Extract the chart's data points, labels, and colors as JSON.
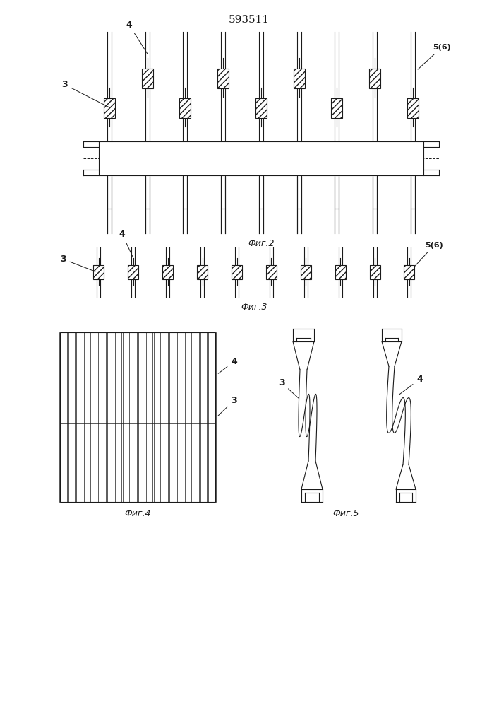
{
  "title": "593511",
  "fig2_label": "Фиг.2",
  "fig3_label": "Фиг.3",
  "fig4_label": "Фиг.4",
  "fig5_label": "Фиг.5",
  "bg_color": "#ffffff",
  "line_color": "#1a1a1a"
}
